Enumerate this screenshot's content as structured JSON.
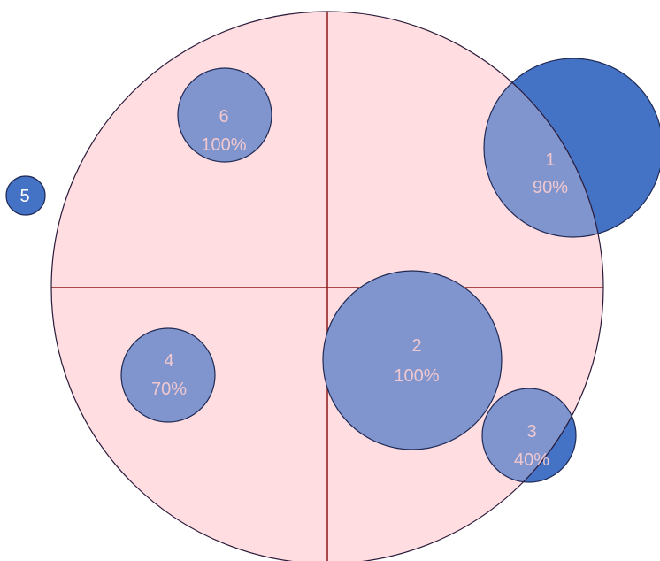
{
  "diagram": {
    "colors": {
      "background": "#ffffff",
      "big_circle_fill": "#ffdde0",
      "big_circle_stroke": "#2a1a3a",
      "divider": "#8b1a1a",
      "bubble_fill": "#4472c4",
      "bubble_stroke": "#1f2a55",
      "bubble_label": "#f0c8cf",
      "bubble_label_outside": "#ffffff"
    },
    "bubbles": [
      {
        "id": "1",
        "label": "1",
        "percent": "90%"
      },
      {
        "id": "2",
        "label": "2",
        "percent": "100%"
      },
      {
        "id": "3",
        "label": "3",
        "percent": "40%"
      },
      {
        "id": "4",
        "label": "4",
        "percent": "70%"
      },
      {
        "id": "5",
        "label": "5",
        "percent": ""
      },
      {
        "id": "6",
        "label": "6",
        "percent": "100%"
      }
    ]
  }
}
